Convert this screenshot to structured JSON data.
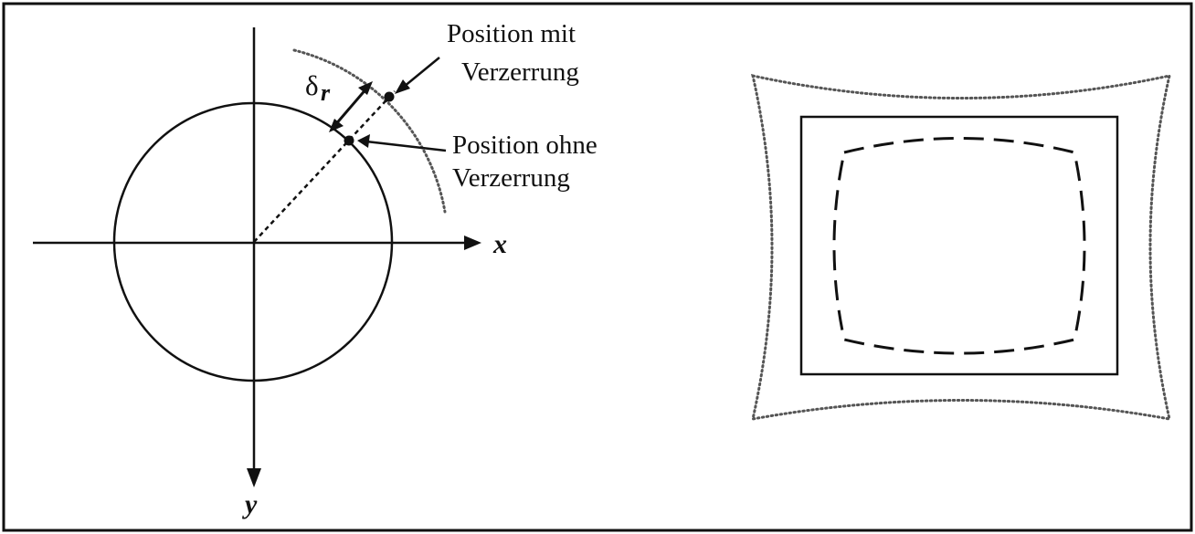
{
  "diagram": {
    "labels": {
      "position_with_distortion_line1": "Position mit",
      "position_with_distortion_line2": "Verzerrung",
      "position_without_distortion_line1": "Position ohne",
      "position_without_distortion_line2": "Verzerrung",
      "delta_symbol": "δ",
      "delta_subscript": "r",
      "x_axis": "x",
      "y_axis": "y"
    },
    "colors": {
      "stroke": "#111111",
      "dotted": "#555555",
      "background": "#ffffff"
    }
  }
}
